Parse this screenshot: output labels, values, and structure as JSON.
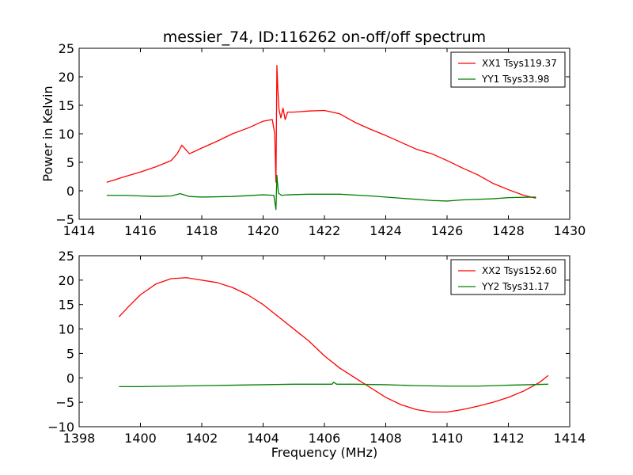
{
  "figure": {
    "title": "messier_74, ID:116262 on-off/off spectrum",
    "ylabel": "Power in Kelvin",
    "xlabel": "Frequency (MHz)"
  },
  "chart_data": [
    {
      "type": "line",
      "title": "messier_74, ID:116262 on-off/off spectrum",
      "xlabel": "",
      "ylabel": "Power in Kelvin",
      "xlim": [
        1414,
        1430
      ],
      "ylim": [
        -5,
        25
      ],
      "xticks": [
        1414,
        1416,
        1418,
        1420,
        1422,
        1424,
        1426,
        1428,
        1430
      ],
      "yticks": [
        -5,
        0,
        5,
        10,
        15,
        20,
        25
      ],
      "legend_position": "top-right",
      "grid": false,
      "series": [
        {
          "name": "XX1 Tsys119.37",
          "color": "#ff0000",
          "x": [
            1414.9,
            1415.5,
            1416.0,
            1416.5,
            1417.0,
            1417.2,
            1417.35,
            1417.6,
            1418.0,
            1418.5,
            1419.0,
            1419.5,
            1420.0,
            1420.3,
            1420.38,
            1420.42,
            1420.45,
            1420.48,
            1420.52,
            1420.58,
            1420.65,
            1420.72,
            1420.8,
            1421.0,
            1421.5,
            1422.0,
            1422.5,
            1423.0,
            1423.5,
            1424.0,
            1424.5,
            1425.0,
            1425.5,
            1426.0,
            1426.5,
            1427.0,
            1427.5,
            1428.0,
            1428.5,
            1428.9
          ],
          "y": [
            1.5,
            2.5,
            3.3,
            4.2,
            5.3,
            6.5,
            8.0,
            6.5,
            7.5,
            8.7,
            10.0,
            11.0,
            12.2,
            12.5,
            10.0,
            1.5,
            22.0,
            18.0,
            14.2,
            12.8,
            14.5,
            12.5,
            13.8,
            13.8,
            14.0,
            14.1,
            13.5,
            12.0,
            10.8,
            9.7,
            8.5,
            7.3,
            6.5,
            5.3,
            4.0,
            2.8,
            1.3,
            0.2,
            -0.8,
            -1.3
          ]
        },
        {
          "name": "YY1 Tsys33.98",
          "color": "#008000",
          "x": [
            1414.9,
            1415.5,
            1416.0,
            1416.5,
            1417.0,
            1417.3,
            1417.6,
            1418.0,
            1419.0,
            1420.0,
            1420.35,
            1420.42,
            1420.45,
            1420.5,
            1420.6,
            1420.8,
            1421.5,
            1422.5,
            1423.5,
            1424.5,
            1425.5,
            1426.0,
            1426.5,
            1427.5,
            1428.0,
            1428.9
          ],
          "y": [
            -0.8,
            -0.8,
            -0.9,
            -1.0,
            -0.9,
            -0.5,
            -1.0,
            -1.1,
            -1.0,
            -0.7,
            -0.8,
            -3.3,
            2.7,
            -0.4,
            -0.8,
            -0.7,
            -0.6,
            -0.6,
            -0.9,
            -1.3,
            -1.7,
            -1.8,
            -1.6,
            -1.4,
            -1.2,
            -1.1
          ]
        }
      ]
    },
    {
      "type": "line",
      "title": "",
      "xlabel": "Frequency (MHz)",
      "ylabel": "",
      "xlim": [
        1398,
        1414
      ],
      "ylim": [
        -10,
        25
      ],
      "xticks": [
        1398,
        1400,
        1402,
        1404,
        1406,
        1408,
        1410,
        1412,
        1414
      ],
      "yticks": [
        -10,
        -5,
        0,
        5,
        10,
        15,
        20,
        25
      ],
      "legend_position": "top-right",
      "grid": false,
      "series": [
        {
          "name": "XX2 Tsys152.60",
          "color": "#ff0000",
          "x": [
            1399.3,
            1399.6,
            1400.0,
            1400.5,
            1401.0,
            1401.5,
            1402.0,
            1402.5,
            1403.0,
            1403.5,
            1404.0,
            1404.5,
            1405.0,
            1405.5,
            1406.0,
            1406.5,
            1407.0,
            1407.5,
            1408.0,
            1408.5,
            1409.0,
            1409.5,
            1410.0,
            1410.5,
            1411.0,
            1411.5,
            1412.0,
            1412.5,
            1413.0,
            1413.3
          ],
          "y": [
            12.5,
            14.5,
            17.0,
            19.2,
            20.3,
            20.5,
            20.0,
            19.5,
            18.5,
            17.0,
            15.0,
            12.5,
            10.0,
            7.5,
            4.5,
            2.0,
            0.0,
            -2.0,
            -4.0,
            -5.5,
            -6.5,
            -7.0,
            -7.0,
            -6.5,
            -5.8,
            -5.0,
            -4.0,
            -2.7,
            -1.0,
            0.5
          ]
        },
        {
          "name": "YY2 Tsys31.17",
          "color": "#008000",
          "x": [
            1399.3,
            1400.0,
            1401.0,
            1402.0,
            1403.0,
            1404.0,
            1405.0,
            1406.0,
            1406.25,
            1406.3,
            1406.4,
            1407.0,
            1408.0,
            1409.0,
            1410.0,
            1411.0,
            1412.0,
            1413.3
          ],
          "y": [
            -1.8,
            -1.8,
            -1.7,
            -1.6,
            -1.5,
            -1.4,
            -1.3,
            -1.3,
            -1.3,
            -0.9,
            -1.3,
            -1.3,
            -1.4,
            -1.6,
            -1.7,
            -1.7,
            -1.5,
            -1.3
          ]
        }
      ]
    }
  ]
}
